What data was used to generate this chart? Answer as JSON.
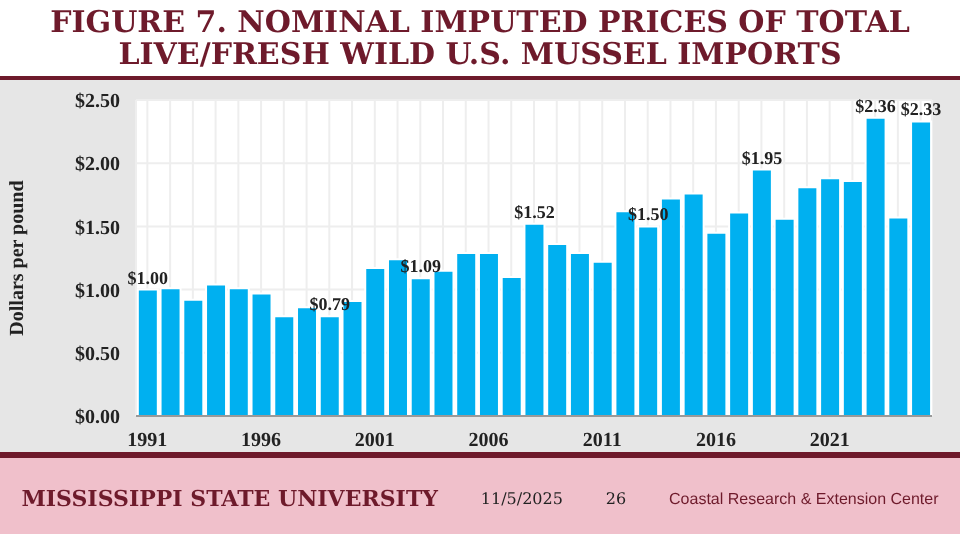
{
  "chart_data": {
    "type": "bar",
    "title": "FIGURE 7. NOMINAL IMPUTED PRICES OF TOTAL LIVE/FRESH WILD U.S. MUSSEL IMPORTS",
    "ylabel": "Dollars per pound",
    "categories": [
      "1991",
      null,
      null,
      null,
      null,
      "1996",
      null,
      null,
      null,
      null,
      "2001",
      null,
      null,
      null,
      null,
      "2006",
      null,
      null,
      null,
      null,
      "2011",
      null,
      null,
      null,
      null,
      "2016",
      null,
      null,
      null,
      null,
      "2021",
      null,
      null,
      null,
      null
    ],
    "values": [
      1.0,
      1.01,
      0.92,
      1.04,
      1.01,
      0.97,
      0.79,
      0.86,
      0.79,
      0.91,
      1.17,
      1.24,
      1.09,
      1.15,
      1.29,
      1.29,
      1.1,
      1.52,
      1.36,
      1.29,
      1.22,
      1.62,
      1.5,
      1.72,
      1.76,
      1.45,
      1.61,
      1.95,
      1.56,
      1.81,
      1.88,
      1.86,
      2.36,
      1.57,
      2.33
    ],
    "value_labels": [
      "$1.00",
      null,
      null,
      null,
      null,
      null,
      null,
      null,
      "$0.79",
      null,
      null,
      null,
      "$1.09",
      null,
      null,
      null,
      null,
      "$1.52",
      null,
      null,
      null,
      null,
      "$1.50",
      null,
      null,
      null,
      null,
      "$1.95",
      null,
      null,
      null,
      null,
      "$2.36",
      null,
      "$2.33"
    ],
    "color": "#00b0f0",
    "ylim": [
      0,
      2.5
    ],
    "yticks": [
      {
        "value": 0,
        "label": "$0.00"
      },
      {
        "value": 0.5,
        "label": "$0.50"
      },
      {
        "value": 1,
        "label": "$1.00"
      },
      {
        "value": 1.5,
        "label": "$1.50"
      },
      {
        "value": 2,
        "label": "$2.00"
      },
      {
        "value": 2.5,
        "label": "$2.50"
      }
    ],
    "grid": true,
    "annotations": [
      "MISSISSIPPI STATE UNIVERSITY",
      "11/5/2025",
      "26",
      "Coastal Research & Extension Center"
    ]
  }
}
